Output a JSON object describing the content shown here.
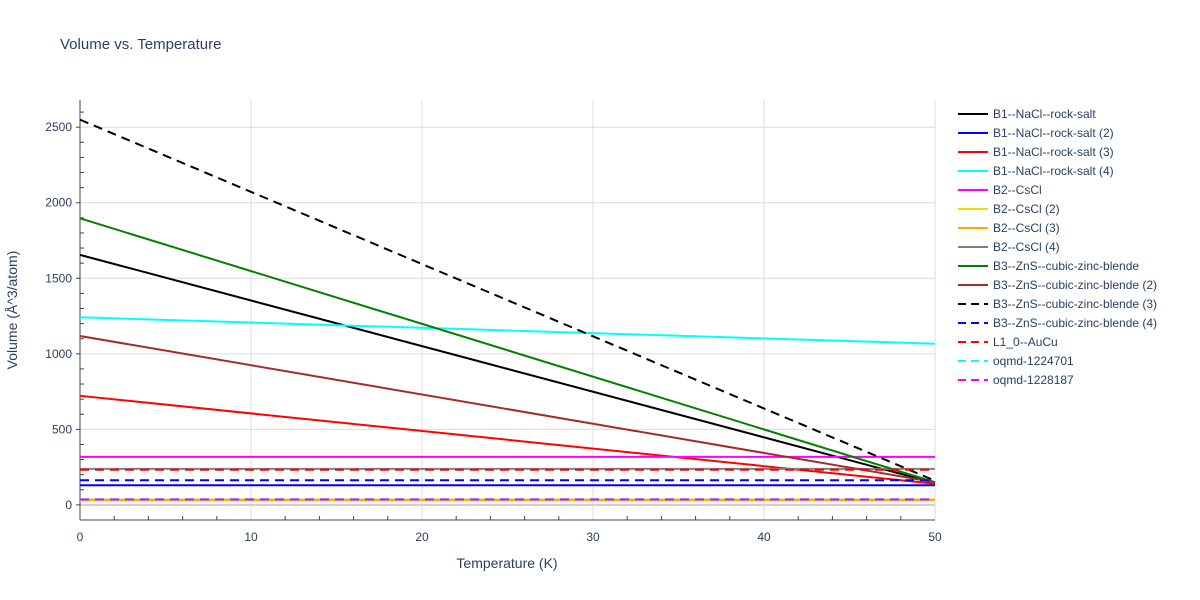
{
  "chart_data": {
    "type": "line",
    "title": "Volume vs. Temperature",
    "xlabel": "Temperature (K)",
    "ylabel": "Volume (Å^3/atom)",
    "xlim": [
      0,
      50
    ],
    "ylim": [
      -100,
      2680
    ],
    "xticks": [
      0,
      10,
      20,
      30,
      40,
      50
    ],
    "yticks": [
      0,
      500,
      1000,
      1500,
      2000,
      2500
    ],
    "grid": true,
    "legend_position": "right",
    "series": [
      {
        "name": "B1--NaCl--rock-salt",
        "color": "#000000",
        "dash": "solid",
        "x": [
          0,
          50
        ],
        "y": [
          1655,
          145
        ]
      },
      {
        "name": "B1--NaCl--rock-salt (2)",
        "color": "#0000ff",
        "dash": "solid",
        "x": [
          0,
          50
        ],
        "y": [
          130,
          130
        ]
      },
      {
        "name": "B1--NaCl--rock-salt (3)",
        "color": "#ff0000",
        "dash": "solid",
        "x": [
          0,
          50
        ],
        "y": [
          722,
          140
        ]
      },
      {
        "name": "B1--NaCl--rock-salt (4)",
        "color": "#00ffff",
        "dash": "solid",
        "x": [
          0,
          50
        ],
        "y": [
          1242,
          1067
        ]
      },
      {
        "name": "B2--CsCl",
        "color": "#ff00ff",
        "dash": "solid",
        "x": [
          0,
          50
        ],
        "y": [
          318,
          318
        ]
      },
      {
        "name": "B2--CsCl (2)",
        "color": "#ffd700",
        "dash": "solid",
        "x": [
          0,
          50
        ],
        "y": [
          30,
          30
        ]
      },
      {
        "name": "B2--CsCl (3)",
        "color": "#ffa500",
        "dash": "solid",
        "x": [
          0,
          50
        ],
        "y": [
          35,
          35
        ]
      },
      {
        "name": "B2--CsCl (4)",
        "color": "#808080",
        "dash": "solid",
        "x": [
          0,
          50
        ],
        "y": [
          238,
          238
        ]
      },
      {
        "name": "B3--ZnS--cubic-zinc-blende",
        "color": "#008000",
        "dash": "solid",
        "x": [
          0,
          50
        ],
        "y": [
          1897,
          150
        ]
      },
      {
        "name": "B3--ZnS--cubic-zinc-blende (2)",
        "color": "#a52a2a",
        "dash": "solid",
        "x": [
          0,
          50
        ],
        "y": [
          1118,
          150
        ]
      },
      {
        "name": "B3--ZnS--cubic-zinc-blende (3)",
        "color": "#000000",
        "dash": "dash",
        "x": [
          0,
          50
        ],
        "y": [
          2550,
          160
        ]
      },
      {
        "name": "B3--ZnS--cubic-zinc-blende (4)",
        "color": "#0000ff",
        "dash": "dash",
        "x": [
          0,
          50
        ],
        "y": [
          163,
          163
        ]
      },
      {
        "name": "L1_0--AuCu",
        "color": "#ff0000",
        "dash": "dash",
        "x": [
          0,
          50
        ],
        "y": [
          233,
          233
        ]
      },
      {
        "name": "oqmd-1224701",
        "color": "#00ffff",
        "dash": "dash",
        "x": [
          0,
          50
        ],
        "y": [
          38,
          38
        ]
      },
      {
        "name": "oqmd-1228187",
        "color": "#ff00ff",
        "dash": "dash",
        "x": [
          0,
          50
        ],
        "y": [
          36,
          36
        ]
      }
    ]
  }
}
